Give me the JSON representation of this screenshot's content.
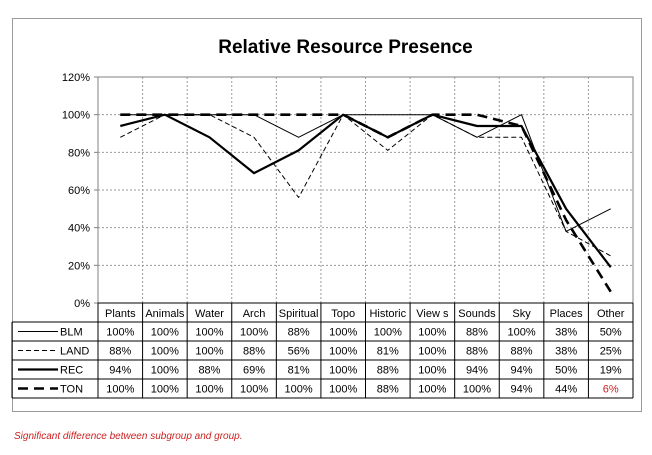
{
  "chart_data": {
    "type": "line",
    "title": "Relative Resource Presence",
    "xlabel": "",
    "ylabel": "",
    "ylim": [
      0,
      120
    ],
    "yticks": [
      "0%",
      "20%",
      "40%",
      "60%",
      "80%",
      "100%",
      "120%"
    ],
    "grid": true,
    "legend": "data-table-left",
    "categories": [
      "Plants",
      "Animals",
      "Water",
      "Arch",
      "Spiritual",
      "Topo",
      "Historic",
      "View s",
      "Sounds",
      "Sky",
      "Places",
      "Other"
    ],
    "series": [
      {
        "name": "BLM",
        "style": "thin-solid",
        "values": [
          100,
          100,
          100,
          100,
          88,
          100,
          100,
          100,
          88,
          100,
          38,
          50
        ],
        "labels": [
          "100%",
          "100%",
          "100%",
          "100%",
          "88%",
          "100%",
          "100%",
          "100%",
          "88%",
          "100%",
          "38%",
          "50%"
        ]
      },
      {
        "name": "LAND",
        "style": "thin-dashed",
        "values": [
          88,
          100,
          100,
          88,
          56,
          100,
          81,
          100,
          88,
          88,
          38,
          25
        ],
        "labels": [
          "88%",
          "100%",
          "100%",
          "88%",
          "56%",
          "100%",
          "81%",
          "100%",
          "88%",
          "88%",
          "38%",
          "25%"
        ]
      },
      {
        "name": "REC",
        "style": "thick-solid",
        "values": [
          94,
          100,
          88,
          69,
          81,
          100,
          88,
          100,
          94,
          94,
          50,
          19
        ],
        "labels": [
          "94%",
          "100%",
          "88%",
          "69%",
          "81%",
          "100%",
          "88%",
          "100%",
          "94%",
          "94%",
          "50%",
          "19%"
        ]
      },
      {
        "name": "TON",
        "style": "thick-dashed",
        "values": [
          100,
          100,
          100,
          100,
          100,
          100,
          88,
          100,
          100,
          94,
          44,
          6
        ],
        "labels": [
          "100%",
          "100%",
          "100%",
          "100%",
          "100%",
          "100%",
          "88%",
          "100%",
          "100%",
          "94%",
          "44%",
          "6%"
        ],
        "highlight": [
          false,
          false,
          false,
          false,
          false,
          false,
          false,
          false,
          false,
          false,
          false,
          true
        ]
      }
    ],
    "highlight_color": "#cc1f1f"
  },
  "footnote": "Significant difference between subgroup and group."
}
